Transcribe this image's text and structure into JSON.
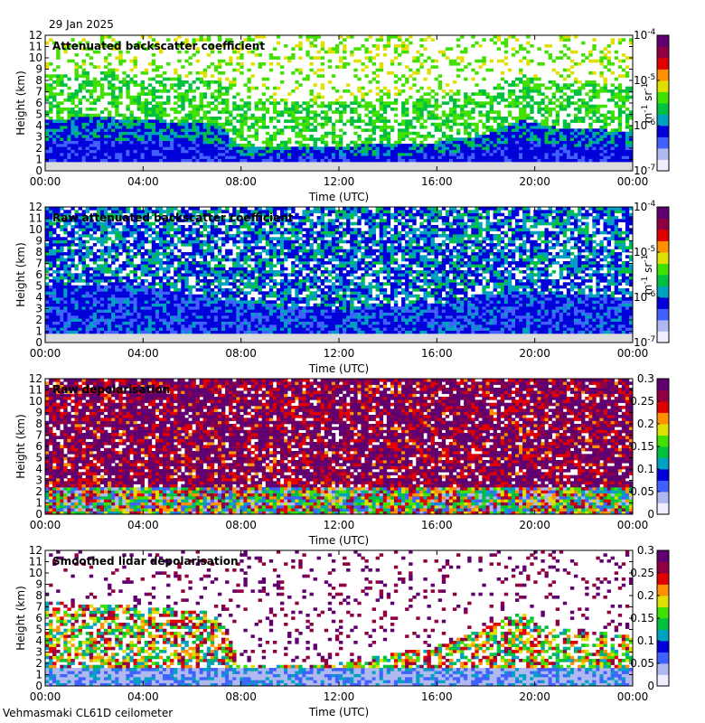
{
  "date": "29 Jan 2025",
  "footer": "Vehmasmaki CL61D ceilometer",
  "colors": {
    "panel_background": "#ffffff",
    "near_ground": "#dcdcdc",
    "colormap": [
      "#eeeeff",
      "#b0b8f0",
      "#4060ff",
      "#0000d8",
      "#00a0c0",
      "#00c040",
      "#40e000",
      "#e0e000",
      "#ff9000",
      "#e00000",
      "#900040",
      "#600070"
    ]
  },
  "chart_data": [
    {
      "type": "heatmap",
      "title": "Attenuated backscatter coefficient",
      "xlabel": "Time (UTC)",
      "ylabel": "Height (km)",
      "xticks": [
        "00:00",
        "04:00",
        "08:00",
        "12:00",
        "16:00",
        "20:00",
        "00:00"
      ],
      "xlim_hours": [
        0,
        24
      ],
      "ylim": [
        0,
        12
      ],
      "yticks": [
        0,
        1,
        2,
        3,
        4,
        5,
        6,
        7,
        8,
        9,
        10,
        11,
        12
      ],
      "colorbar": {
        "scale": "log",
        "range": [
          1e-07,
          0.0001
        ],
        "tick_labels": [
          {
            "base": "10",
            "exp": "-7"
          },
          {
            "base": "10",
            "exp": "-6"
          },
          {
            "base": "10",
            "exp": "-5"
          },
          {
            "base": "10",
            "exp": "-4"
          }
        ],
        "label": {
          "m": "m",
          "m_exp": "-1",
          "sr": " sr",
          "sr_exp": "-1"
        }
      },
      "profile": {
        "hours": [
          0,
          2,
          4,
          6,
          7.2,
          8,
          12,
          16,
          18,
          19.5,
          21,
          24
        ],
        "layer_top_km": [
          4.5,
          4.8,
          4.5,
          4.3,
          4.0,
          2.0,
          2.2,
          2.5,
          3.2,
          4.5,
          3.8,
          3.5
        ]
      },
      "noise_level": 0.55
    },
    {
      "type": "heatmap",
      "title": "Raw attenuated backscatter coefficient",
      "xlabel": "Time (UTC)",
      "ylabel": "Height (km)",
      "xticks": [
        "00:00",
        "04:00",
        "08:00",
        "12:00",
        "16:00",
        "20:00",
        "00:00"
      ],
      "xlim_hours": [
        0,
        24
      ],
      "ylim": [
        0,
        12
      ],
      "yticks": [
        0,
        1,
        2,
        3,
        4,
        5,
        6,
        7,
        8,
        9,
        10,
        11,
        12
      ],
      "colorbar": {
        "scale": "log",
        "range": [
          1e-07,
          0.0001
        ],
        "tick_labels": [
          {
            "base": "10",
            "exp": "-7"
          },
          {
            "base": "10",
            "exp": "-6"
          },
          {
            "base": "10",
            "exp": "-5"
          },
          {
            "base": "10",
            "exp": "-4"
          }
        ],
        "label": {
          "m": "m",
          "m_exp": "-1",
          "sr": " sr",
          "sr_exp": "-1"
        }
      },
      "profile": {
        "hours": [
          0,
          4,
          8,
          12,
          16,
          19.5,
          24
        ],
        "layer_top_km": [
          5.0,
          5.0,
          3.5,
          3.0,
          3.5,
          4.5,
          4.0
        ]
      },
      "noise_level": 0.85
    },
    {
      "type": "heatmap",
      "title": "Raw depolarisation",
      "xlabel": "Time (UTC)",
      "ylabel": "Height (km)",
      "xticks": [
        "00:00",
        "04:00",
        "08:00",
        "12:00",
        "16:00",
        "20:00",
        "00:00"
      ],
      "xlim_hours": [
        0,
        24
      ],
      "ylim": [
        0,
        12
      ],
      "yticks": [
        0,
        1,
        2,
        3,
        4,
        5,
        6,
        7,
        8,
        9,
        10,
        11,
        12
      ],
      "colorbar": {
        "scale": "linear",
        "range": [
          0,
          0.3
        ],
        "tick_labels": [
          "0",
          "0.05",
          "0.1",
          "0.15",
          "0.2",
          "0.25",
          "0.3"
        ]
      },
      "noise_level": 0.95
    },
    {
      "type": "heatmap",
      "title": "Smoothed lidar depolarisation",
      "xlabel": "Time (UTC)",
      "ylabel": "Height (km)",
      "xticks": [
        "00:00",
        "04:00",
        "08:00",
        "12:00",
        "16:00",
        "20:00",
        "00:00"
      ],
      "xlim_hours": [
        0,
        24
      ],
      "ylim": [
        0,
        12
      ],
      "yticks": [
        0,
        1,
        2,
        3,
        4,
        5,
        6,
        7,
        8,
        9,
        10,
        11,
        12
      ],
      "colorbar": {
        "scale": "linear",
        "range": [
          0,
          0.3
        ],
        "tick_labels": [
          "0",
          "0.05",
          "0.1",
          "0.15",
          "0.2",
          "0.25",
          "0.3"
        ]
      },
      "profile": {
        "hours": [
          0,
          4,
          7,
          8,
          12,
          16,
          19.5,
          21,
          24
        ],
        "layer_top_km": [
          7.5,
          7.0,
          6.5,
          2.0,
          2.0,
          3.5,
          6.5,
          5.0,
          4.5
        ]
      },
      "noise_level": 0.45
    }
  ]
}
